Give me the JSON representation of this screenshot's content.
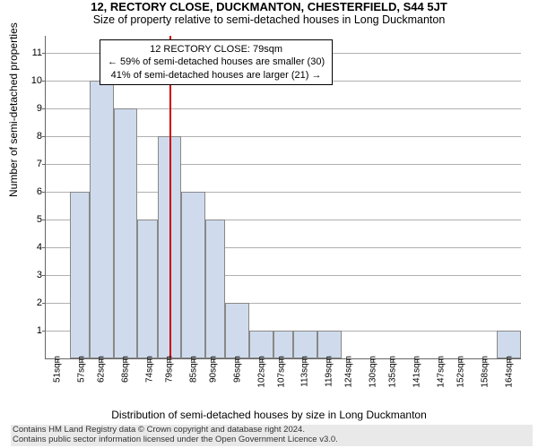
{
  "title": "12, RECTORY CLOSE, DUCKMANTON, CHESTERFIELD, S44 5JT",
  "subtitle": "Size of property relative to semi-detached houses in Long Duckmanton",
  "ylabel": "Number of semi-detached properties",
  "xlabel": "Distribution of semi-detached houses by size in Long Duckmanton",
  "annotation": {
    "line1": "12 RECTORY CLOSE: 79sqm",
    "line2": "← 59% of semi-detached houses are smaller (30)",
    "line3": "41% of semi-detached houses are larger (21) →"
  },
  "chart": {
    "type": "histogram",
    "background_color": "#ffffff",
    "grid_color": "#b0b0b0",
    "bar_fill": "#cfdbec",
    "bar_border": "#888888",
    "marker_color": "#cc0000",
    "marker_x": 79,
    "ylim": [
      0,
      11.6
    ],
    "yticks": [
      1,
      2,
      3,
      4,
      5,
      6,
      7,
      8,
      9,
      10,
      11
    ],
    "xticks": [
      51,
      57,
      62,
      68,
      74,
      79,
      85,
      90,
      96,
      102,
      107,
      113,
      119,
      124,
      130,
      135,
      141,
      147,
      152,
      158,
      164
    ],
    "xtick_suffix": "sqm",
    "xlim": [
      48,
      167
    ],
    "bars": [
      {
        "x0": 48,
        "x1": 54,
        "y": 0
      },
      {
        "x0": 54,
        "x1": 59,
        "y": 6
      },
      {
        "x0": 59,
        "x1": 65,
        "y": 10
      },
      {
        "x0": 65,
        "x1": 71,
        "y": 9
      },
      {
        "x0": 71,
        "x1": 76,
        "y": 5
      },
      {
        "x0": 76,
        "x1": 82,
        "y": 8
      },
      {
        "x0": 82,
        "x1": 88,
        "y": 6
      },
      {
        "x0": 88,
        "x1": 93,
        "y": 5
      },
      {
        "x0": 93,
        "x1": 99,
        "y": 2
      },
      {
        "x0": 99,
        "x1": 105,
        "y": 1
      },
      {
        "x0": 105,
        "x1": 110,
        "y": 1
      },
      {
        "x0": 110,
        "x1": 116,
        "y": 1
      },
      {
        "x0": 116,
        "x1": 122,
        "y": 1
      },
      {
        "x0": 122,
        "x1": 127,
        "y": 0
      },
      {
        "x0": 127,
        "x1": 133,
        "y": 0
      },
      {
        "x0": 133,
        "x1": 138,
        "y": 0
      },
      {
        "x0": 138,
        "x1": 144,
        "y": 0
      },
      {
        "x0": 144,
        "x1": 150,
        "y": 0
      },
      {
        "x0": 150,
        "x1": 155,
        "y": 0
      },
      {
        "x0": 155,
        "x1": 161,
        "y": 0
      },
      {
        "x0": 161,
        "x1": 167,
        "y": 1
      }
    ],
    "title_fontsize": 13,
    "subtitle_fontsize": 12.5,
    "label_fontsize": 12,
    "tick_fontsize": 11,
    "annotation_fontsize": 11
  },
  "footer": {
    "line1": "Contains HM Land Registry data © Crown copyright and database right 2024.",
    "line2": "Contains public sector information licensed under the Open Government Licence v3.0."
  }
}
